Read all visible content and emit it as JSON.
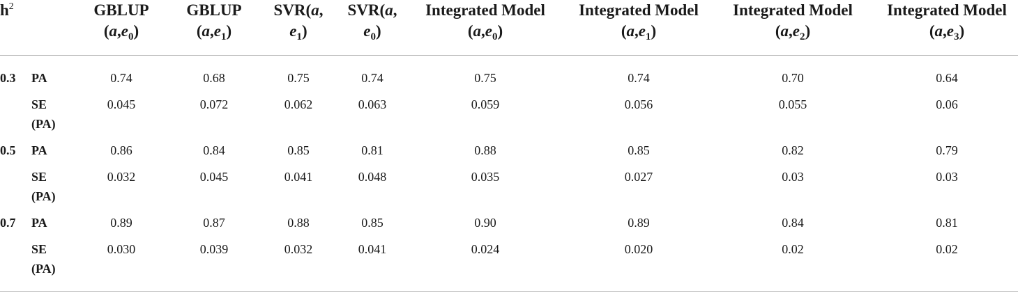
{
  "header": {
    "h_label": "h",
    "h_sup": "2",
    "columns": [
      {
        "line1": "GBLUP",
        "l2_open": "(",
        "l2_a": "a",
        "l2_sep": ",",
        "l2_e": "e",
        "l2_sub": "0",
        "l2_close": ")"
      },
      {
        "line1": "GBLUP",
        "l2_open": "(",
        "l2_a": "a",
        "l2_sep": ",",
        "l2_e": "e",
        "l2_sub": "1",
        "l2_close": ")"
      },
      {
        "line1_text": "SVR(",
        "line1_a": "a",
        "line1_tail": ",",
        "l2_e": "e",
        "l2_sub": "1",
        "l2_close": ")"
      },
      {
        "line1_text": "SVR(",
        "line1_a": "a",
        "line1_tail": ",",
        "l2_e": "e",
        "l2_sub": "0",
        "l2_close": ")"
      },
      {
        "line1": "Integrated Model",
        "l2_open": "(",
        "l2_a": "a",
        "l2_sep": ",",
        "l2_e": "e",
        "l2_sub": "0",
        "l2_close": ")"
      },
      {
        "line1": "Integrated Model",
        "l2_open": "(",
        "l2_a": "a",
        "l2_sep": ",",
        "l2_e": "e",
        "l2_sub": "1",
        "l2_close": ")"
      },
      {
        "line1": "Integrated Model",
        "l2_open": "(",
        "l2_a": "a",
        "l2_sep": ",",
        "l2_e": "e",
        "l2_sub": "2",
        "l2_close": ")"
      },
      {
        "line1": "Integrated Model",
        "l2_open": "(",
        "l2_a": "a",
        "l2_sep": ",",
        "l2_e": "e",
        "l2_sub": "3",
        "l2_close": ")"
      }
    ]
  },
  "groups": [
    {
      "h2": "0.3",
      "pa_label": "PA",
      "se_label_1": "SE",
      "se_label_2": "(PA)",
      "pa": [
        "0.74",
        "0.68",
        "0.75",
        "0.74",
        "0.75",
        "0.74",
        "0.70",
        "0.64"
      ],
      "se": [
        "0.045",
        "0.072",
        "0.062",
        "0.063",
        "0.059",
        "0.056",
        "0.055",
        "0.06"
      ]
    },
    {
      "h2": "0.5",
      "pa_label": "PA",
      "se_label_1": "SE",
      "se_label_2": "(PA)",
      "pa": [
        "0.86",
        "0.84",
        "0.85",
        "0.81",
        "0.88",
        "0.85",
        "0.82",
        "0.79"
      ],
      "se": [
        "0.032",
        "0.045",
        "0.041",
        "0.048",
        "0.035",
        "0.027",
        "0.03",
        "0.03"
      ]
    },
    {
      "h2": "0.7",
      "pa_label": "PA",
      "se_label_1": "SE",
      "se_label_2": "(PA)",
      "pa": [
        "0.89",
        "0.87",
        "0.88",
        "0.85",
        "0.90",
        "0.89",
        "0.84",
        "0.81"
      ],
      "se": [
        "0.030",
        "0.039",
        "0.032",
        "0.041",
        "0.024",
        "0.020",
        "0.02",
        "0.02"
      ]
    }
  ]
}
